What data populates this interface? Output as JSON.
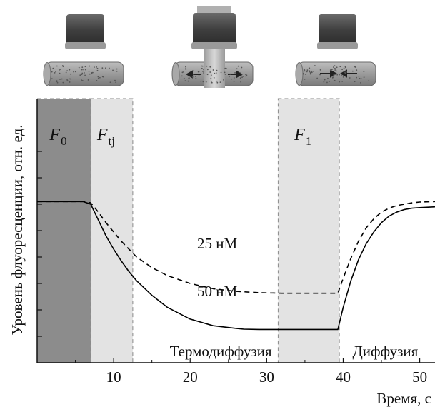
{
  "chart_data": {
    "type": "line",
    "xlabel": "Время, с",
    "ylabel": "Уровень флуоресценции, отн. ед.",
    "xlim": [
      0,
      52
    ],
    "ylim": [
      0,
      10
    ],
    "x_ticks": [
      10,
      20,
      30,
      40,
      50
    ],
    "grid": false,
    "regions": [
      {
        "label_main": "F",
        "label_sub": "0",
        "from": 0,
        "to": 7,
        "shade": "#8c8c8c"
      },
      {
        "label_main": "F",
        "label_sub": "tj",
        "from": 7,
        "to": 12.5,
        "shade": "#e3e3e3"
      },
      {
        "label_main": "F",
        "label_sub": "1",
        "from": 31.5,
        "to": 39.5,
        "shade": "#e3e3e3"
      }
    ],
    "phase_labels": [
      {
        "text": "Термодиффузия",
        "x": 24
      },
      {
        "text": "Диффузия",
        "x": 45.5
      }
    ],
    "series": [
      {
        "name": "25 нМ",
        "style": "dashed",
        "x": [
          0,
          6,
          7,
          8,
          9,
          10,
          11,
          12,
          13,
          15,
          17,
          20,
          23,
          26,
          29,
          32,
          35,
          38,
          39.3,
          40,
          41,
          42,
          43,
          44,
          45,
          46,
          47,
          48,
          49,
          50,
          52
        ],
        "y": [
          6.1,
          6.1,
          6.05,
          5.7,
          5.3,
          4.95,
          4.6,
          4.3,
          4.0,
          3.6,
          3.3,
          3.0,
          2.8,
          2.7,
          2.65,
          2.63,
          2.63,
          2.63,
          2.63,
          3.2,
          3.95,
          4.6,
          5.1,
          5.45,
          5.7,
          5.85,
          5.95,
          6.0,
          6.05,
          6.08,
          6.1
        ]
      },
      {
        "name": "50 нМ",
        "style": "solid",
        "x": [
          0,
          6,
          7,
          8,
          9,
          10,
          11,
          12,
          13,
          15,
          17,
          20,
          23,
          26,
          27,
          29,
          32,
          35,
          38,
          39.3,
          40,
          41,
          42,
          43,
          44,
          45,
          46,
          47,
          48,
          49,
          50,
          52
        ],
        "y": [
          6.1,
          6.1,
          6.0,
          5.4,
          4.8,
          4.3,
          3.85,
          3.45,
          3.1,
          2.55,
          2.1,
          1.65,
          1.4,
          1.3,
          1.27,
          1.26,
          1.26,
          1.26,
          1.26,
          1.26,
          2.1,
          3.1,
          3.9,
          4.5,
          4.95,
          5.3,
          5.55,
          5.7,
          5.8,
          5.85,
          5.87,
          5.9
        ]
      }
    ]
  }
}
